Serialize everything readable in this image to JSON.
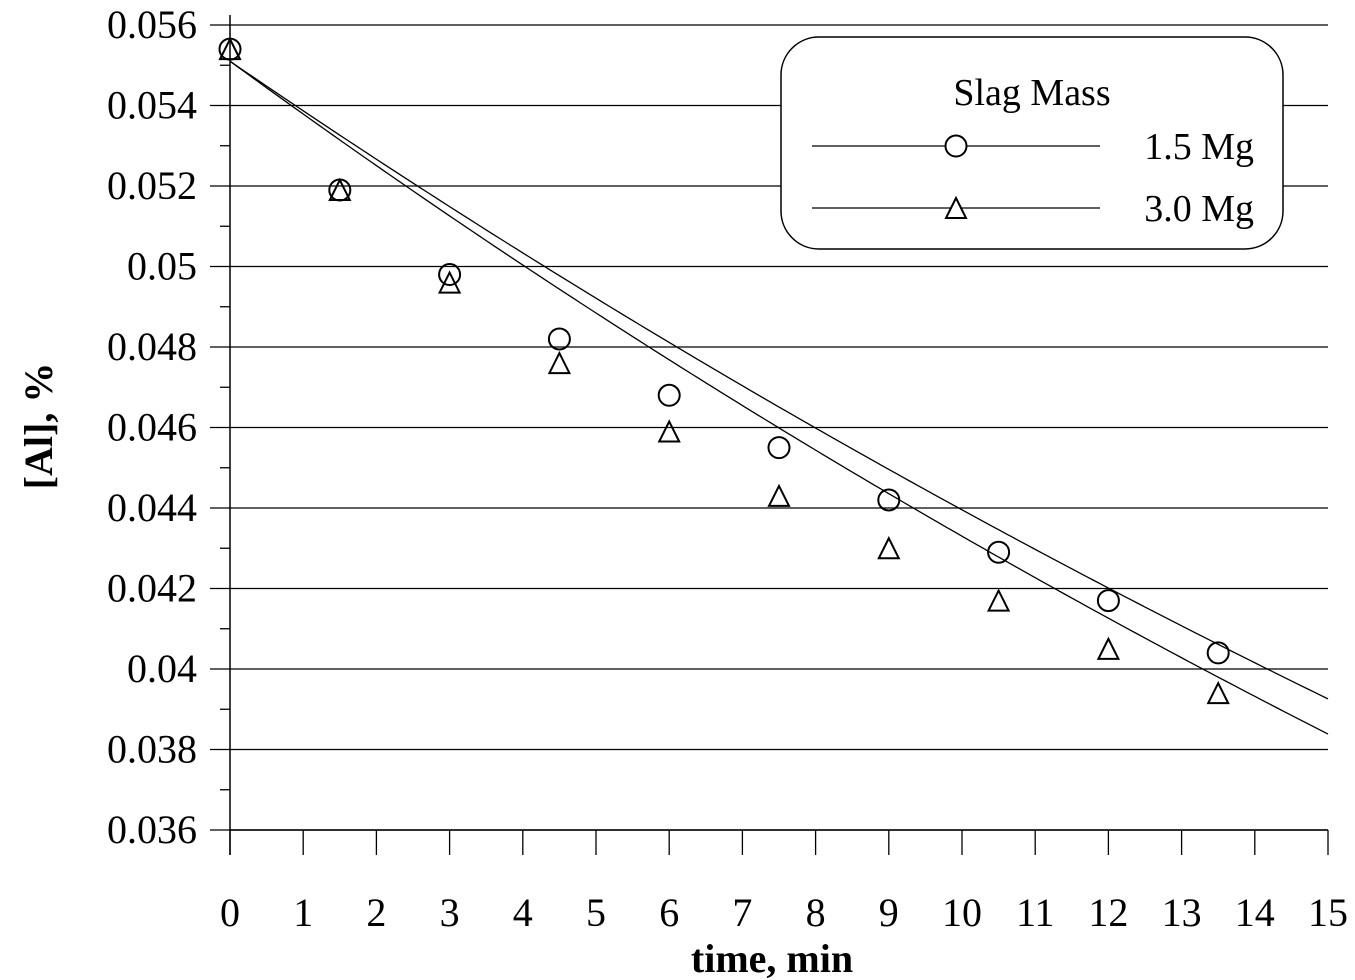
{
  "chart_data": {
    "type": "scatter",
    "xlabel": "time, min",
    "ylabel": "[Al], %",
    "xlim": [
      0,
      15
    ],
    "ylim": [
      0.036,
      0.056
    ],
    "x_ticks": [
      "0",
      "1",
      "2",
      "3",
      "4",
      "5",
      "6",
      "7",
      "8",
      "9",
      "10",
      "11",
      "12",
      "13",
      "14",
      "15"
    ],
    "y_ticks": [
      "0.056",
      "0.054",
      "0.052",
      "0.05",
      "0.048",
      "0.046",
      "0.044",
      "0.042",
      "0.04",
      "0.038",
      "0.036"
    ],
    "grid": "horizontal",
    "legend": {
      "title": "Slag Mass",
      "position": "top-right"
    },
    "series": [
      {
        "name": "1.5 Mg",
        "marker": "circle",
        "x": [
          0,
          1.5,
          3,
          4.5,
          6,
          7.5,
          9,
          10.5,
          12,
          13.5
        ],
        "y": [
          0.0554,
          0.0519,
          0.0498,
          0.0482,
          0.0468,
          0.0455,
          0.0442,
          0.0429,
          0.0417,
          0.0404
        ],
        "fit": {
          "form": "exponential",
          "y0": 0.0551,
          "k": 0.0226,
          "x_end": 15
        }
      },
      {
        "name": "3.0 Mg",
        "marker": "triangle",
        "x": [
          0,
          1.5,
          3,
          4.5,
          6,
          7.5,
          9,
          10.5,
          12,
          13.5
        ],
        "y": [
          0.0554,
          0.0519,
          0.0496,
          0.0476,
          0.0459,
          0.0443,
          0.043,
          0.0417,
          0.0405,
          0.0394
        ],
        "fit": {
          "form": "exponential",
          "y0": 0.0551,
          "k": 0.0241,
          "x_end": 15
        }
      }
    ]
  }
}
